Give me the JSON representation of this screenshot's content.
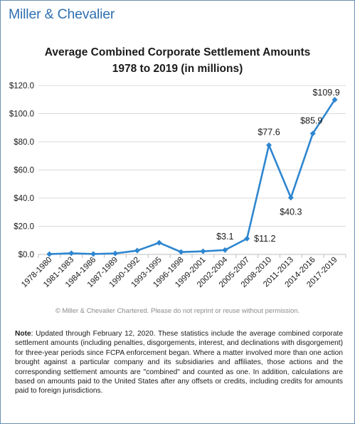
{
  "logo": {
    "text": "Miller & Chevalier"
  },
  "chart_data": {
    "type": "line",
    "title_line1": "Average Combined Corporate Settlement Amounts",
    "title_line2": "1978 to 2019 (in millions)",
    "categories": [
      "1978-1980",
      "1981-1983",
      "1984-1986",
      "1987-1989",
      "1990-1992",
      "1993-1995",
      "1996-1998",
      "1999-2001",
      "2002-2004",
      "2005-2007",
      "2008-2010",
      "2011-2013",
      "2014-2016",
      "2017-2019"
    ],
    "values": [
      0.2,
      0.8,
      0.3,
      0.7,
      2.7,
      8.3,
      1.7,
      2.2,
      3.1,
      11.2,
      77.6,
      40.3,
      85.9,
      109.9
    ],
    "ylim": [
      0,
      120
    ],
    "yticks": [
      "$0.0",
      "$20.0",
      "$40.0",
      "$60.0",
      "$80.0",
      "$100.0",
      "$120.0"
    ],
    "data_labels": [
      {
        "index": 8,
        "text": "$3.1"
      },
      {
        "index": 9,
        "text": "$11.2"
      },
      {
        "index": 10,
        "text": "$77.6"
      },
      {
        "index": 11,
        "text": "$40.3"
      },
      {
        "index": 12,
        "text": "$85.9"
      },
      {
        "index": 13,
        "text": "$109.9"
      }
    ],
    "grid": true,
    "line_color": "#2e86d0",
    "grid_color": "#d9d9d9"
  },
  "copyright": "© Miller & Chevalier Chartered. Please do not reprint or reuse without permission.",
  "note": {
    "label": "Note",
    "text": ": Updated through February 12, 2020. These statistics include the average combined corporate settlement amounts (including penalties, disgorgements, interest, and declinations with disgorgement) for three-year periods since FCPA enforcement began. Where a matter involved more than one action brought against a particular company and its subsidiaries and affiliates, those actions and the corresponding settlement amounts are \"combined\" and counted as one. In addition, calculations are based on amounts paid to the United States after any offsets or credits, including credits for amounts paid to foreign jurisdictions."
  }
}
